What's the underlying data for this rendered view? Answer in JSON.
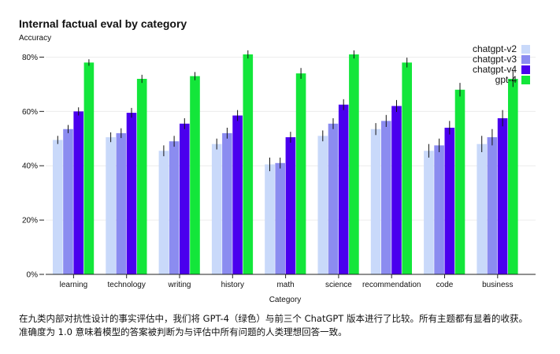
{
  "chart_data": {
    "type": "bar",
    "title": "Internal factual eval by category",
    "ylabel": "Accuracy",
    "xlabel": "Category",
    "ylim": [
      0,
      0.9
    ],
    "yticks": [
      0,
      0.2,
      0.4,
      0.6,
      0.8
    ],
    "ytick_labels": [
      "0%",
      "20%",
      "40%",
      "60%",
      "80%"
    ],
    "grid": true,
    "legend": "top-right",
    "categories": [
      "learning",
      "technology",
      "writing",
      "history",
      "math",
      "science",
      "recommendation",
      "code",
      "business"
    ],
    "series": [
      {
        "name": "chatgpt-v2",
        "color": "#c9d9fa",
        "values": [
          0.495,
          0.505,
          0.455,
          0.48,
          0.405,
          0.51,
          0.535,
          0.455,
          0.48
        ],
        "errors": [
          0.015,
          0.018,
          0.02,
          0.02,
          0.025,
          0.02,
          0.022,
          0.025,
          0.03
        ]
      },
      {
        "name": "chatgpt-v3",
        "color": "#8b8cf0",
        "values": [
          0.535,
          0.52,
          0.49,
          0.52,
          0.41,
          0.555,
          0.565,
          0.475,
          0.505
        ],
        "errors": [
          0.015,
          0.018,
          0.02,
          0.02,
          0.02,
          0.02,
          0.022,
          0.025,
          0.03
        ]
      },
      {
        "name": "chatgpt-v4",
        "color": "#4a00ee",
        "values": [
          0.6,
          0.595,
          0.555,
          0.585,
          0.505,
          0.625,
          0.62,
          0.54,
          0.575
        ],
        "errors": [
          0.015,
          0.018,
          0.02,
          0.02,
          0.02,
          0.02,
          0.022,
          0.025,
          0.03
        ]
      },
      {
        "name": "gpt-4",
        "color": "#13e63a",
        "values": [
          0.78,
          0.72,
          0.73,
          0.81,
          0.74,
          0.81,
          0.78,
          0.68,
          0.72
        ],
        "errors": [
          0.012,
          0.015,
          0.015,
          0.015,
          0.02,
          0.015,
          0.018,
          0.025,
          0.03
        ]
      }
    ]
  },
  "caption": {
    "line1": "在九类内部对抗性设计的事实评估中，我们将 GPT-4（绿色）与前三个 ChatGPT 版本进行了比较。所有主题都有显着的收获。",
    "line2": "准确度为 1.0 意味着模型的答案被判断为与评估中所有问题的人类理想回答一致。"
  }
}
